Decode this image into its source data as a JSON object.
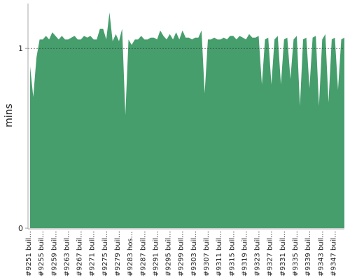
{
  "chart_data": {
    "type": "area",
    "y_label": "mins",
    "categories": [
      "#9251 buil…",
      null,
      null,
      null,
      "#9255 buil…",
      null,
      null,
      null,
      "#9259 buil…",
      null,
      null,
      null,
      "#9263 buil…",
      null,
      null,
      null,
      "#9267 buil…",
      null,
      null,
      null,
      "#9271 buil…",
      null,
      null,
      null,
      "#9275 buil…",
      null,
      null,
      null,
      "#9279 buil…",
      null,
      null,
      null,
      "#9283 hos…",
      null,
      null,
      null,
      "#9287 buil…",
      null,
      null,
      null,
      "#9291 buil…",
      null,
      null,
      null,
      "#9295 buil…",
      null,
      null,
      null,
      "#9299 buil…",
      null,
      null,
      null,
      "#9303 buil…",
      null,
      null,
      null,
      "#9307 buil…",
      null,
      null,
      null,
      "#9311 buil…",
      null,
      null,
      null,
      "#9315 buil…",
      null,
      null,
      null,
      "#9319 buil…",
      null,
      null,
      null,
      "#9323 buil…",
      null,
      null,
      null,
      "#9327 buil…",
      null,
      null,
      null,
      "#9331 buil…",
      null,
      null,
      null,
      "#9335 buil…",
      null,
      null,
      null,
      "#9339 buil…",
      null,
      null,
      null,
      "#9343 buil…",
      null,
      null,
      null,
      "#9347 buil…",
      null,
      null,
      null
    ],
    "values": [
      0.9,
      0.73,
      0.95,
      1.05,
      1.05,
      1.07,
      1.05,
      1.09,
      1.07,
      1.05,
      1.07,
      1.05,
      1.05,
      1.06,
      1.07,
      1.05,
      1.05,
      1.07,
      1.06,
      1.07,
      1.05,
      1.05,
      1.11,
      1.11,
      1.05,
      1.2,
      1.04,
      1.08,
      1.04,
      1.11,
      0.63,
      1.05,
      1.02,
      1.05,
      1.05,
      1.07,
      1.05,
      1.05,
      1.06,
      1.06,
      1.05,
      1.1,
      1.07,
      1.05,
      1.08,
      1.05,
      1.09,
      1.05,
      1.1,
      1.06,
      1.06,
      1.05,
      1.06,
      1.06,
      1.1,
      0.75,
      1.05,
      1.05,
      1.06,
      1.05,
      1.05,
      1.06,
      1.05,
      1.07,
      1.07,
      1.05,
      1.07,
      1.06,
      1.05,
      1.08,
      1.06,
      1.06,
      1.07,
      0.8,
      1.05,
      1.06,
      0.8,
      1.05,
      1.07,
      0.8,
      1.05,
      1.06,
      0.83,
      1.05,
      1.07,
      0.68,
      1.05,
      1.06,
      0.78,
      1.06,
      1.07,
      0.68,
      1.05,
      1.08,
      0.7,
      1.05,
      1.06,
      0.77,
      1.05,
      1.06
    ],
    "color": "#469e6d",
    "ylim": [
      0,
      1.25
    ],
    "yticks": [
      0,
      1
    ],
    "grid": true
  }
}
